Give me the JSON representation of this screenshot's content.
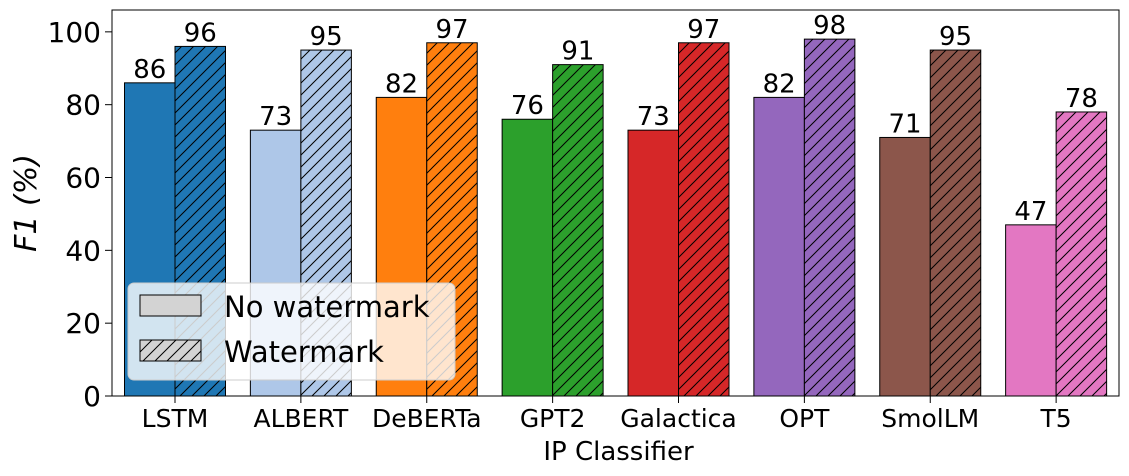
{
  "chart_data": {
    "type": "bar",
    "xlabel": "IP Classifier",
    "ylabel": "F1 (%)",
    "ylim": [
      0,
      106
    ],
    "yticks": [
      0,
      20,
      40,
      60,
      80,
      100
    ],
    "categories": [
      "LSTM",
      "ALBERT",
      "DeBERTa",
      "GPT2",
      "Galactica",
      "OPT",
      "SmolLM",
      "T5"
    ],
    "colors": [
      "#1f77b4",
      "#aec7e8",
      "#ff7f0e",
      "#2ca02c",
      "#d62728",
      "#9467bd",
      "#8c564b",
      "#e377c2"
    ],
    "series": [
      {
        "name": "No watermark",
        "hatch": false,
        "values": [
          86,
          73,
          82,
          76,
          73,
          82,
          71,
          47
        ]
      },
      {
        "name": "Watermark",
        "hatch": true,
        "values": [
          96,
          95,
          97,
          91,
          97,
          98,
          95,
          78
        ]
      }
    ],
    "legend": {
      "position": "lower-left",
      "swatch_color": "#d3d3d3"
    },
    "grid": false
  }
}
